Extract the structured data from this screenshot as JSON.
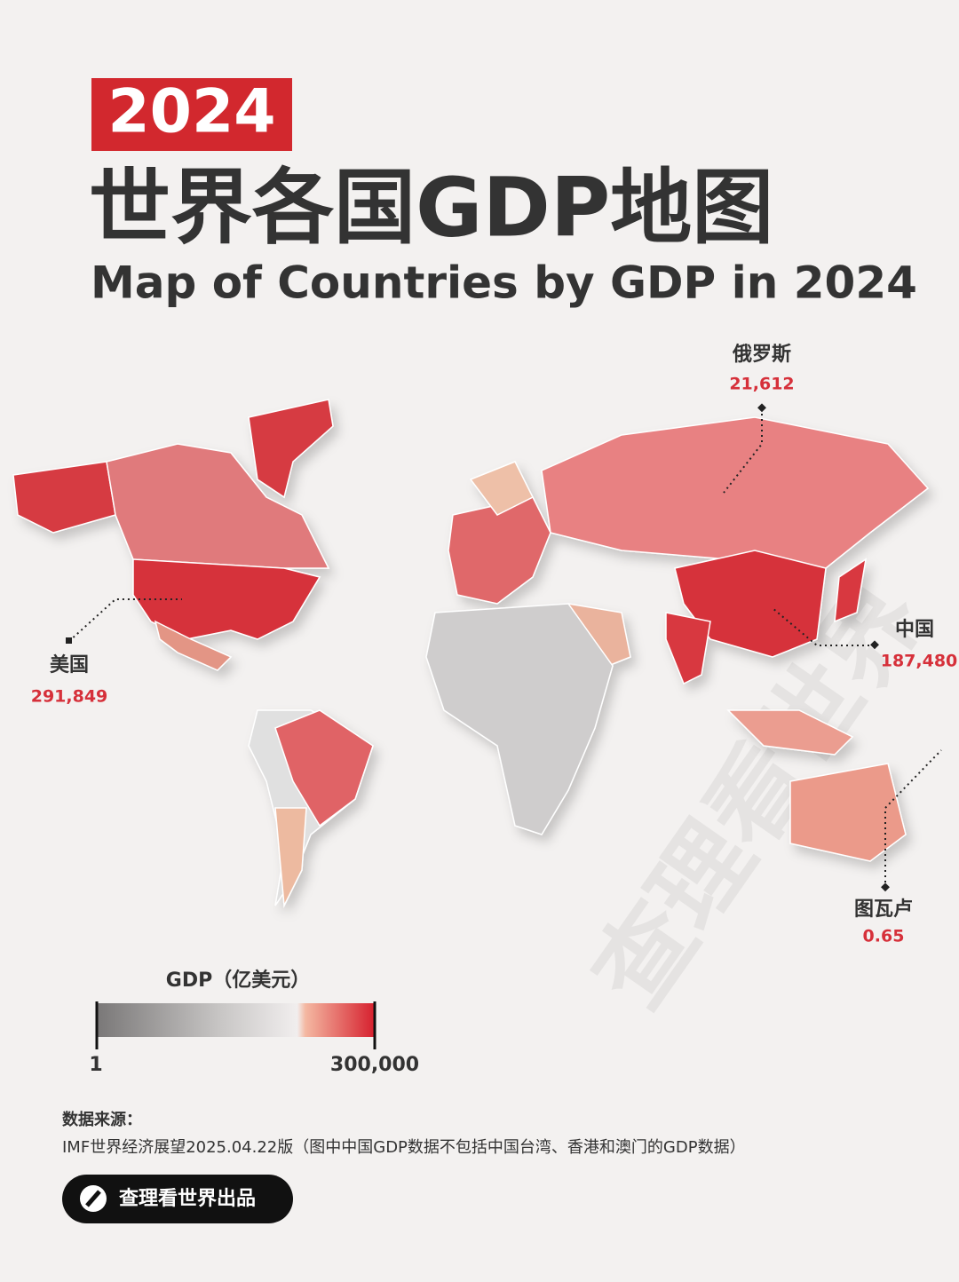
{
  "header": {
    "year": "2024",
    "title_cn": "世界各国GDP地图",
    "title_en": "Map of Countries by GDP in 2024"
  },
  "callouts": [
    {
      "name": "俄罗斯",
      "value": "21,612"
    },
    {
      "name": "美国",
      "value": "291,849"
    },
    {
      "name": "中国",
      "value": "187,480"
    },
    {
      "name": "图瓦卢",
      "value": "0.65"
    }
  ],
  "legend": {
    "title": "GDP（亿美元）",
    "min": "1",
    "max": "300,000"
  },
  "source": {
    "label": "数据来源：",
    "text": "IMF世界经济展望2025.04.22版（图中中国GDP数据不包括中国台湾、香港和澳门的GDP数据）"
  },
  "footer": {
    "brand": "查理看世界出品"
  },
  "watermark": "查理看世界"
}
